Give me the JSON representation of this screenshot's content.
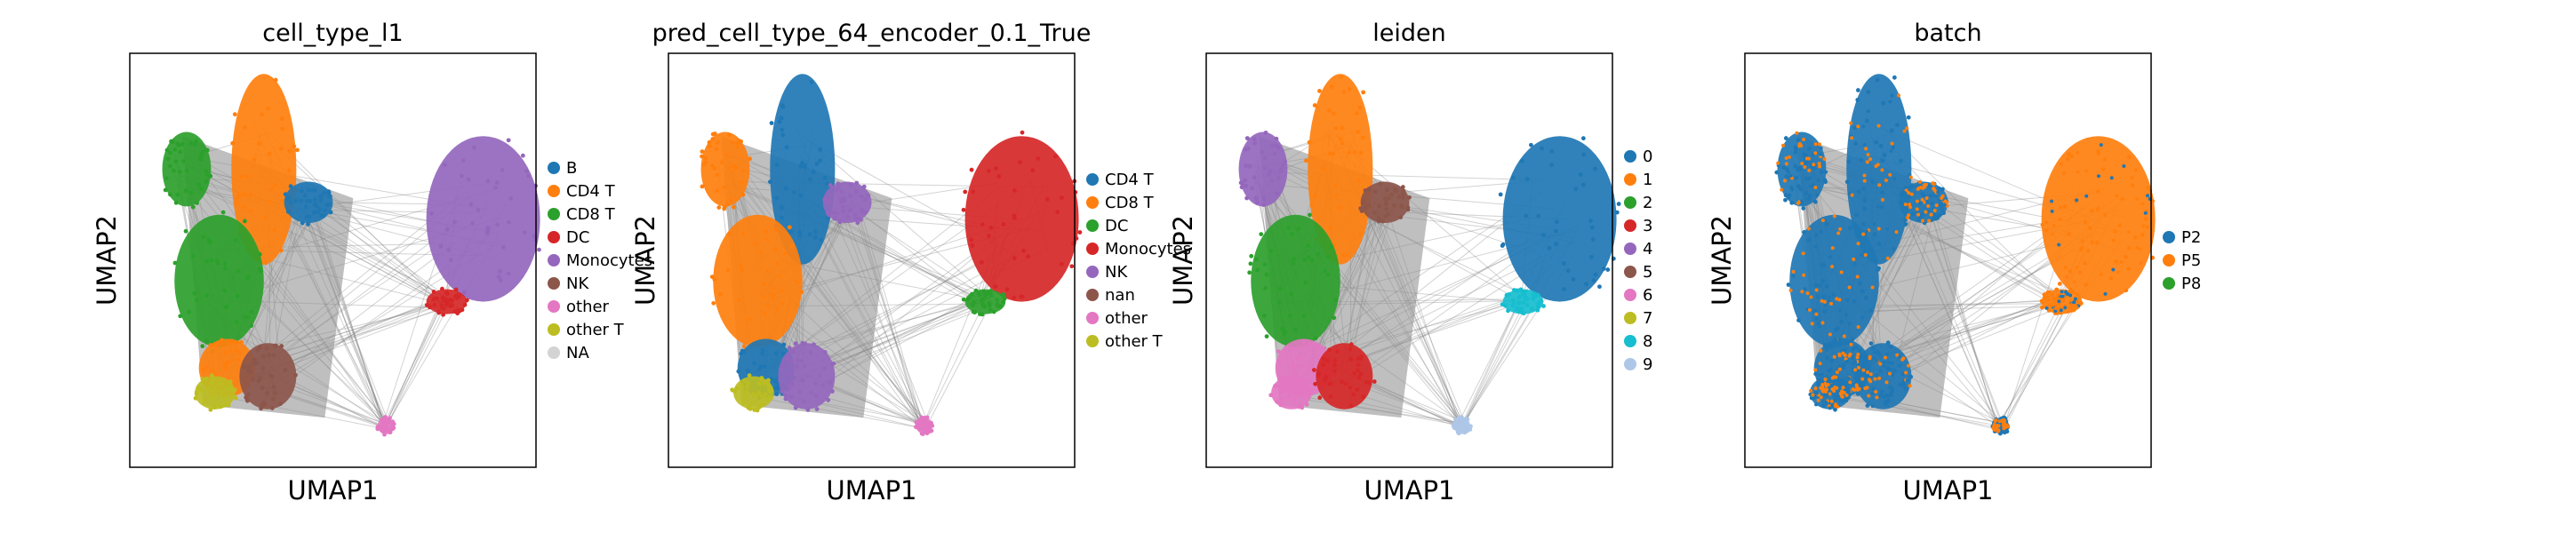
{
  "chart_data": [
    {
      "type": "scatter",
      "title": "cell_type_l1",
      "xlabel": "UMAP1",
      "ylabel": "UMAP2",
      "grid": false,
      "legend_placement": "right",
      "series": [
        {
          "name": "B",
          "color": "#1f77b4"
        },
        {
          "name": "CD4 T",
          "color": "#ff7f0e"
        },
        {
          "name": "CD8 T",
          "color": "#2ca02c"
        },
        {
          "name": "DC",
          "color": "#d62728"
        },
        {
          "name": "Monocytes",
          "color": "#9467bd"
        },
        {
          "name": "NK",
          "color": "#8c564b"
        },
        {
          "name": "other",
          "color": "#e377c2"
        },
        {
          "name": "other T",
          "color": "#bcbd22"
        },
        {
          "name": "NA",
          "color": "#d3d3d3"
        }
      ]
    },
    {
      "type": "scatter",
      "title": "pred_cell_type_64_encoder_0.1_True",
      "xlabel": "UMAP1",
      "ylabel": "UMAP2",
      "grid": false,
      "legend_placement": "right",
      "series": [
        {
          "name": "CD4 T",
          "color": "#1f77b4"
        },
        {
          "name": "CD8 T",
          "color": "#ff7f0e"
        },
        {
          "name": "DC",
          "color": "#2ca02c"
        },
        {
          "name": "Monocytes",
          "color": "#d62728"
        },
        {
          "name": "NK",
          "color": "#9467bd"
        },
        {
          "name": "nan",
          "color": "#8c564b"
        },
        {
          "name": "other",
          "color": "#e377c2"
        },
        {
          "name": "other T",
          "color": "#bcbd22"
        }
      ]
    },
    {
      "type": "scatter",
      "title": "leiden",
      "xlabel": "UMAP1",
      "ylabel": "UMAP2",
      "grid": false,
      "legend_placement": "right",
      "series": [
        {
          "name": "0",
          "color": "#1f77b4"
        },
        {
          "name": "1",
          "color": "#ff7f0e"
        },
        {
          "name": "2",
          "color": "#2ca02c"
        },
        {
          "name": "3",
          "color": "#d62728"
        },
        {
          "name": "4",
          "color": "#9467bd"
        },
        {
          "name": "5",
          "color": "#8c564b"
        },
        {
          "name": "6",
          "color": "#e377c2"
        },
        {
          "name": "7",
          "color": "#bcbd22"
        },
        {
          "name": "8",
          "color": "#17becf"
        },
        {
          "name": "9",
          "color": "#aec7e8"
        }
      ]
    },
    {
      "type": "scatter",
      "title": "batch",
      "xlabel": "UMAP1",
      "ylabel": "UMAP2",
      "grid": false,
      "legend_placement": "right",
      "series": [
        {
          "name": "P2",
          "color": "#1f77b4"
        },
        {
          "name": "P5",
          "color": "#ff7f0e"
        },
        {
          "name": "P8",
          "color": "#2ca02c"
        }
      ]
    }
  ]
}
